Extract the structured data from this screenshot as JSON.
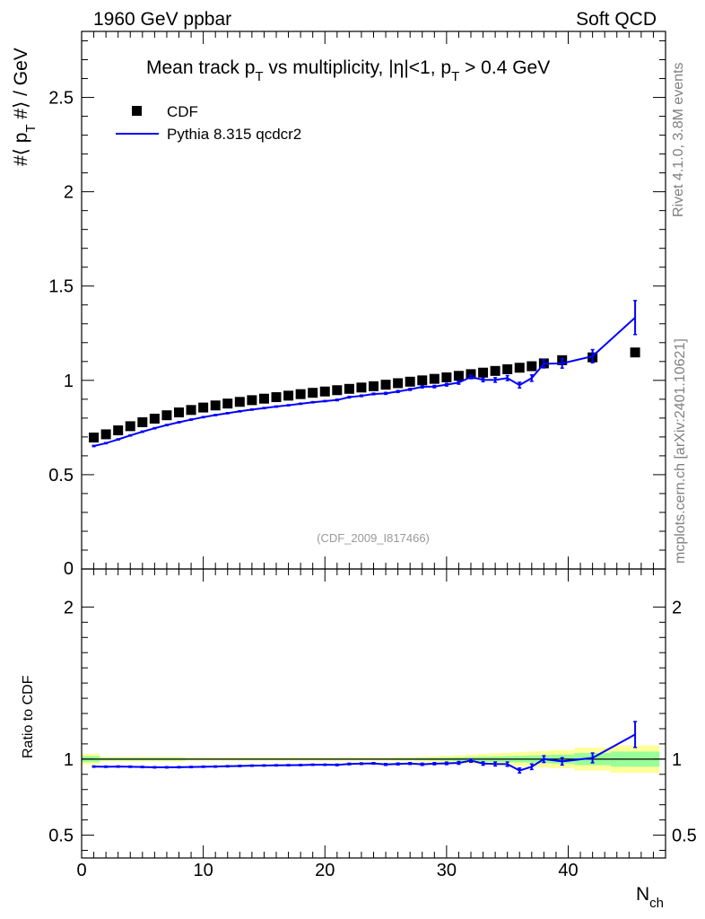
{
  "header": {
    "left": "1960 GeV ppbar",
    "right": "Soft QCD"
  },
  "chart_data": [
    {
      "type": "scatter",
      "panel": "main",
      "title_text": "Mean track p",
      "title_sub": "T",
      "title_rest": " vs multiplicity, |η|<1, p",
      "title_sub2": "T",
      "title_tail": " > 0.4 GeV",
      "ylabel_pre": "#⟨ p",
      "ylabel_sub": "T",
      "ylabel_post": " #⟩ / GeV",
      "xlim": [
        0,
        48
      ],
      "ylim": [
        0,
        2.85
      ],
      "ytick_labels": [
        "0.5",
        "1",
        "1.5",
        "2",
        "2.5"
      ],
      "ytick_values": [
        0.5,
        1,
        1.5,
        2,
        2.5
      ],
      "ytick_zero_label": "0",
      "legend": [
        {
          "label": "CDF",
          "marker": "square",
          "color": "#000000"
        },
        {
          "label": "Pythia 8.315 qcdcr2",
          "marker": "line",
          "color": "#0000ff"
        }
      ],
      "watermark": "(CDF_2009_I817466)",
      "series": [
        {
          "name": "CDF",
          "x": [
            1,
            2,
            3,
            4,
            5,
            6,
            7,
            8,
            9,
            10,
            11,
            12,
            13,
            14,
            15,
            16,
            17,
            18,
            19,
            20,
            21,
            22,
            23,
            24,
            25,
            26,
            27,
            28,
            29,
            30,
            31,
            32,
            33,
            34,
            35,
            36,
            37,
            38,
            39.5,
            42,
            45.5
          ],
          "y": [
            0.697,
            0.714,
            0.735,
            0.757,
            0.778,
            0.797,
            0.815,
            0.83,
            0.843,
            0.856,
            0.867,
            0.877,
            0.886,
            0.895,
            0.903,
            0.911,
            0.919,
            0.927,
            0.934,
            0.941,
            0.948,
            0.955,
            0.962,
            0.969,
            0.977,
            0.985,
            0.993,
            1.0,
            1.008,
            1.016,
            1.024,
            1.033,
            1.041,
            1.05,
            1.059,
            1.067,
            1.075,
            1.09,
            1.107,
            1.122,
            1.148
          ]
        },
        {
          "name": "Pythia 8.315 qcdcr2",
          "x": [
            1,
            2,
            3,
            4,
            5,
            6,
            7,
            8,
            9,
            10,
            11,
            12,
            13,
            14,
            15,
            16,
            17,
            18,
            19,
            20,
            21,
            22,
            23,
            24,
            25,
            26,
            27,
            28,
            29,
            30,
            31,
            32,
            33,
            34,
            35,
            36,
            37,
            38,
            39.5,
            42,
            45.5
          ],
          "y": [
            0.652,
            0.667,
            0.687,
            0.708,
            0.728,
            0.746,
            0.763,
            0.778,
            0.792,
            0.805,
            0.816,
            0.826,
            0.836,
            0.845,
            0.853,
            0.861,
            0.868,
            0.876,
            0.884,
            0.89,
            0.896,
            0.911,
            0.918,
            0.928,
            0.931,
            0.941,
            0.952,
            0.966,
            0.967,
            0.977,
            0.988,
            1.018,
            1.003,
            1.002,
            1.012,
            0.975,
            1.012,
            1.088,
            1.09,
            1.128,
            1.333
          ],
          "yerr": [
            0.003,
            0.003,
            0.003,
            0.003,
            0.003,
            0.003,
            0.003,
            0.003,
            0.003,
            0.003,
            0.003,
            0.003,
            0.003,
            0.003,
            0.003,
            0.003,
            0.003,
            0.003,
            0.003,
            0.003,
            0.004,
            0.004,
            0.004,
            0.004,
            0.005,
            0.005,
            0.005,
            0.006,
            0.006,
            0.007,
            0.008,
            0.009,
            0.01,
            0.012,
            0.013,
            0.015,
            0.017,
            0.022,
            0.025,
            0.035,
            0.09
          ]
        }
      ]
    },
    {
      "type": "line",
      "panel": "ratio",
      "ylabel": "Ratio to CDF",
      "xlabel": "N",
      "xlabel_sub": "ch",
      "xlim": [
        0,
        48
      ],
      "ylim": [
        0.35,
        2.25
      ],
      "xtick_labels": [
        "0",
        "10",
        "20",
        "30",
        "40"
      ],
      "xtick_values": [
        0,
        10,
        20,
        30,
        40
      ],
      "ytick_labels": [
        "0.5",
        "1",
        "2"
      ],
      "ytick_values": [
        0.5,
        1,
        2
      ],
      "reference_line": 1.0,
      "band_edges": [
        0,
        1.5,
        8.5,
        25.5,
        27.5,
        28.5,
        29.5,
        30.5,
        31.5,
        32.5,
        33.5,
        34.5,
        35.5,
        36.5,
        37.5,
        38.5,
        40.5,
        43.5,
        47.5
      ],
      "band_inner": [
        0.02,
        0.008,
        0.005,
        0.006,
        0.007,
        0.008,
        0.01,
        0.012,
        0.014,
        0.016,
        0.018,
        0.02,
        0.022,
        0.024,
        0.026,
        0.03,
        0.04,
        0.05
      ],
      "band_outer": [
        0.035,
        0.015,
        0.01,
        0.012,
        0.015,
        0.018,
        0.022,
        0.026,
        0.03,
        0.034,
        0.038,
        0.042,
        0.046,
        0.05,
        0.054,
        0.06,
        0.075,
        0.09
      ],
      "series": [
        {
          "name": "Pythia 8.315 qcdcr2 / CDF",
          "x": [
            1,
            2,
            3,
            4,
            5,
            6,
            7,
            8,
            9,
            10,
            11,
            12,
            13,
            14,
            15,
            16,
            17,
            18,
            19,
            20,
            21,
            22,
            23,
            24,
            25,
            26,
            27,
            28,
            29,
            30,
            31,
            32,
            33,
            34,
            35,
            36,
            37,
            38,
            39.5,
            42,
            45.5
          ],
          "y": [
            0.951,
            0.95,
            0.951,
            0.95,
            0.948,
            0.946,
            0.946,
            0.947,
            0.948,
            0.95,
            0.951,
            0.953,
            0.955,
            0.957,
            0.958,
            0.959,
            0.96,
            0.961,
            0.963,
            0.963,
            0.962,
            0.968,
            0.97,
            0.972,
            0.965,
            0.968,
            0.971,
            0.966,
            0.97,
            0.972,
            0.975,
            0.99,
            0.971,
            0.968,
            0.967,
            0.925,
            0.95,
            1.0,
            0.985,
            1.008,
            1.162
          ],
          "yerr": [
            0.004,
            0.004,
            0.004,
            0.004,
            0.004,
            0.004,
            0.004,
            0.004,
            0.004,
            0.004,
            0.004,
            0.004,
            0.004,
            0.004,
            0.004,
            0.004,
            0.004,
            0.004,
            0.004,
            0.004,
            0.005,
            0.005,
            0.005,
            0.005,
            0.006,
            0.006,
            0.006,
            0.007,
            0.007,
            0.008,
            0.009,
            0.01,
            0.011,
            0.013,
            0.014,
            0.016,
            0.018,
            0.022,
            0.024,
            0.032,
            0.085
          ]
        }
      ]
    }
  ],
  "side_labels": {
    "rivet": "Rivet 4.1.0,  3.8M events",
    "mcplots": "mcplots.cern.ch [arXiv:2401.10621]"
  },
  "colors": {
    "data": "#000000",
    "mc": "#0000ff",
    "band_outer": "#ffff99",
    "band_inner": "#99ff99",
    "side_text": "#808080",
    "watermark": "#999999"
  }
}
